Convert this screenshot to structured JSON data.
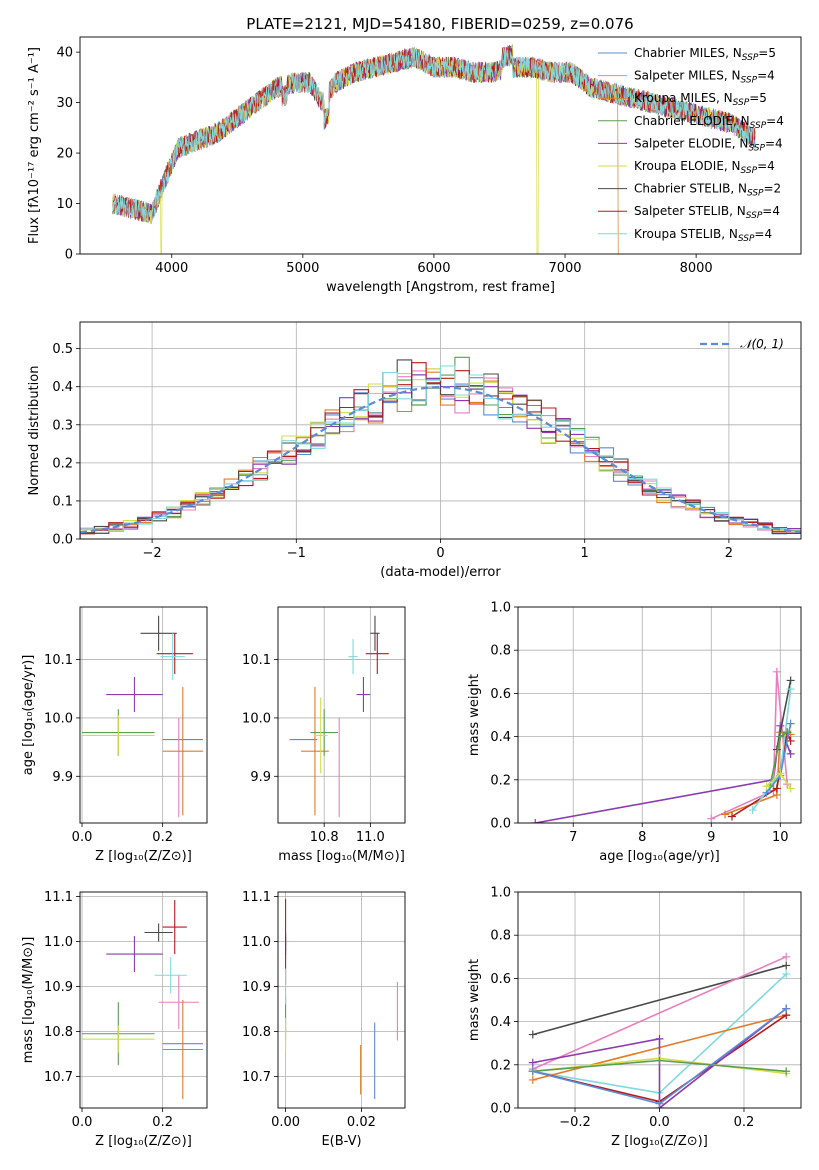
{
  "title": "PLATE=2121, MJD=54180, FIBERID=0259, z=0.076",
  "legend": [
    {
      "name": "Chabrier MILES, N",
      "sub": "SSP",
      "val": "=5",
      "color": "#5b8bd6"
    },
    {
      "name": "Salpeter MILES, N",
      "sub": "SSP",
      "val": "=4",
      "color": "#e87fbf"
    },
    {
      "name": "Kroupa MILES, N",
      "sub": "SSP",
      "val": "=5",
      "color": "#e07b28"
    },
    {
      "name": "Chabrier ELODIE, N",
      "sub": "SSP",
      "val": "=4",
      "color": "#5a9e52"
    },
    {
      "name": "Salpeter ELODIE, N",
      "sub": "SSP",
      "val": "=4",
      "color": "#8e3aae"
    },
    {
      "name": "Kroupa ELODIE, N",
      "sub": "SSP",
      "val": "=4",
      "color": "#d3dd4a"
    },
    {
      "name": "Chabrier STELIB, N",
      "sub": "SSP",
      "val": "=2",
      "color": "#4a4a4a"
    },
    {
      "name": "Salpeter STELIB, N",
      "sub": "SSP",
      "val": "=4",
      "color": "#b51b1b"
    },
    {
      "name": "Kroupa STELIB, N",
      "sub": "SSP",
      "val": "=4",
      "color": "#7fd9dd"
    }
  ],
  "chart_data": [
    {
      "type": "line",
      "id": "spectrum",
      "xlabel": "wavelength [Angstrom, rest frame]",
      "ylabel": "Flux [fλ10⁻¹⁷ erg cm⁻² s⁻¹ A⁻¹]",
      "xlim": [
        3300,
        8800
      ],
      "ylim": [
        0,
        43
      ],
      "xticks": [
        "4000",
        "5000",
        "6000",
        "7000",
        "8000"
      ],
      "yticks": [
        "0",
        "10",
        "20",
        "30",
        "40"
      ],
      "grid": false,
      "x": [
        3550,
        3700,
        3850,
        3950,
        4050,
        4150,
        4250,
        4350,
        4500,
        4650,
        4800,
        4950,
        5050,
        5150,
        5250,
        5400,
        5550,
        5700,
        5850,
        6000,
        6150,
        6300,
        6450,
        6600,
        6750,
        6900,
        7050,
        7200,
        7350,
        7500,
        7650,
        7800,
        7950,
        8100,
        8250,
        8450
      ],
      "y": [
        10,
        9,
        8,
        15,
        21,
        22,
        23,
        24,
        27,
        30,
        33,
        34,
        34,
        30,
        34,
        36,
        37,
        38,
        39,
        37,
        37,
        36,
        36,
        37,
        37,
        36,
        36,
        33,
        32,
        31,
        30,
        29,
        28,
        27,
        26,
        23
      ],
      "dropouts": [
        {
          "series": "Kroupa ELODIE",
          "x": 3920
        },
        {
          "series": "Kroupa ELODIE",
          "x": 6790
        },
        {
          "series": "Kroupa MILES",
          "x": 7410
        }
      ]
    },
    {
      "type": "histogram",
      "id": "residuals",
      "xlabel": "(data-model)/error",
      "ylabel": "Normed distribution",
      "xlim": [
        -2.5,
        2.5
      ],
      "ylim": [
        0,
        0.57
      ],
      "xticks": [
        "−2",
        "−1",
        "0",
        "1",
        "2"
      ],
      "yticks": [
        "0.0",
        "0.1",
        "0.2",
        "0.3",
        "0.4",
        "0.5"
      ],
      "grid": true,
      "legend": "N(0,1)",
      "legend_loc": "top-right",
      "bin_width": 0.1
    },
    {
      "type": "scatter",
      "id": "age-vs-Z",
      "xlabel": "Z [log₁₀(Z/Z⊙)]",
      "ylabel": "age  [log₁₀(age/yr)]",
      "xlim": [
        -0.005,
        0.31
      ],
      "ylim": [
        9.82,
        10.19
      ],
      "xticks": [
        "0.0",
        "0.2"
      ],
      "yticks": [
        "9.9",
        "10.0",
        "10.1"
      ],
      "points": [
        {
          "s": 0,
          "x": 0.25,
          "y": 9.963,
          "ex": 0.05,
          "ey": 0.0
        },
        {
          "s": 1,
          "x": 0.24,
          "y": 9.915,
          "ex": 0.0,
          "ey": 0.085
        },
        {
          "s": 2,
          "x": 0.25,
          "y": 9.943,
          "ex": 0.05,
          "ey": 0.11
        },
        {
          "s": 3,
          "x": 0.09,
          "y": 9.975,
          "ex": 0.09,
          "ey": 0.04
        },
        {
          "s": 4,
          "x": 0.13,
          "y": 10.04,
          "ex": 0.07,
          "ey": 0.03
        },
        {
          "s": 5,
          "x": 0.09,
          "y": 9.97,
          "ex": 0.09,
          "ey": 0.035
        },
        {
          "s": 6,
          "x": 0.19,
          "y": 10.145,
          "ex": 0.045,
          "ey": 0.03
        },
        {
          "s": 7,
          "x": 0.23,
          "y": 10.11,
          "ex": 0.045,
          "ey": 0.035
        },
        {
          "s": 8,
          "x": 0.225,
          "y": 10.105,
          "ex": 0.03,
          "ey": 0.04
        }
      ]
    },
    {
      "type": "scatter",
      "id": "age-vs-mass",
      "xlabel": "mass [log₁₀(M/M⊙)]",
      "ylabel": "",
      "xlim": [
        10.6,
        11.15
      ],
      "ylim": [
        9.82,
        10.19
      ],
      "xticks": [
        "10.8",
        "11.0"
      ],
      "yticks": [
        "9.9",
        "10.0",
        "10.1"
      ],
      "points": [
        {
          "s": 0,
          "x": 10.71,
          "y": 9.963,
          "ex": 0.06,
          "ey": 0.0
        },
        {
          "s": 1,
          "x": 10.865,
          "y": 9.915,
          "ex": 0.0,
          "ey": 0.085
        },
        {
          "s": 2,
          "x": 10.76,
          "y": 9.943,
          "ex": 0.06,
          "ey": 0.11
        },
        {
          "s": 3,
          "x": 10.8,
          "y": 9.975,
          "ex": 0.06,
          "ey": 0.04
        },
        {
          "s": 4,
          "x": 10.97,
          "y": 10.04,
          "ex": 0.03,
          "ey": 0.03
        },
        {
          "s": 5,
          "x": 10.785,
          "y": 9.97,
          "ex": 0.03,
          "ey": 0.065
        },
        {
          "s": 6,
          "x": 11.02,
          "y": 10.145,
          "ex": 0.02,
          "ey": 0.03
        },
        {
          "s": 7,
          "x": 11.03,
          "y": 10.11,
          "ex": 0.05,
          "ey": 0.035
        },
        {
          "s": 8,
          "x": 10.925,
          "y": 10.105,
          "ex": 0.02,
          "ey": 0.03
        }
      ]
    },
    {
      "type": "line",
      "id": "weight-vs-age",
      "xlabel": "age  [log₁₀(age/yr)]",
      "ylabel": "mass weight",
      "xlim": [
        6.2,
        10.3
      ],
      "ylim": [
        0,
        1
      ],
      "xticks": [
        "7",
        "8",
        "9",
        "10"
      ],
      "yticks": [
        "0.0",
        "0.2",
        "0.4",
        "0.6",
        "0.8",
        "1.0"
      ],
      "series": [
        {
          "s": 4,
          "x": [
            6.45,
            9.9,
            10.0,
            10.15
          ],
          "y": [
            0.0,
            0.2,
            0.45,
            0.32
          ]
        },
        {
          "s": 1,
          "x": [
            9.0,
            9.9,
            9.95,
            10.1
          ],
          "y": [
            0.02,
            0.15,
            0.7,
            0.18
          ]
        },
        {
          "s": 2,
          "x": [
            9.2,
            9.95,
            10.0,
            10.15
          ],
          "y": [
            0.04,
            0.13,
            0.42,
            0.41
          ]
        },
        {
          "s": 6,
          "x": [
            9.95,
            10.15
          ],
          "y": [
            0.34,
            0.66
          ]
        },
        {
          "s": 7,
          "x": [
            9.3,
            9.95,
            10.1,
            10.15
          ],
          "y": [
            0.03,
            0.16,
            0.42,
            0.38
          ]
        },
        {
          "s": 8,
          "x": [
            9.6,
            10.0,
            10.15
          ],
          "y": [
            0.06,
            0.23,
            0.62
          ]
        },
        {
          "s": 0,
          "x": [
            9.8,
            10.0,
            10.15
          ],
          "y": [
            0.14,
            0.22,
            0.46
          ]
        },
        {
          "s": 3,
          "x": [
            9.85,
            10.0,
            10.1
          ],
          "y": [
            0.17,
            0.4,
            0.42
          ]
        },
        {
          "s": 5,
          "x": [
            9.8,
            10.0,
            10.15
          ],
          "y": [
            0.17,
            0.23,
            0.16
          ]
        }
      ]
    },
    {
      "type": "scatter",
      "id": "mass-vs-Z",
      "xlabel": "Z [log₁₀(Z/Z⊙)]",
      "ylabel": "mass [log₁₀(M/M⊙)]",
      "xlim": [
        -0.005,
        0.31
      ],
      "ylim": [
        10.63,
        11.11
      ],
      "xticks": [
        "0.0",
        "0.2"
      ],
      "yticks": [
        "10.7",
        "10.8",
        "10.9",
        "11.0",
        "11.1"
      ],
      "points": [
        {
          "s": 0,
          "x": 0.25,
          "y": 10.773,
          "ex": 0.05,
          "ey": 0.0
        },
        {
          "s": 1,
          "x": 0.24,
          "y": 10.865,
          "ex": 0.05,
          "ey": 0.06
        },
        {
          "s": 2,
          "x": 0.25,
          "y": 10.76,
          "ex": 0.05,
          "ey": 0.11
        },
        {
          "s": 3,
          "x": 0.09,
          "y": 10.795,
          "ex": 0.09,
          "ey": 0.07
        },
        {
          "s": 4,
          "x": 0.13,
          "y": 10.972,
          "ex": 0.07,
          "ey": 0.04
        },
        {
          "s": 5,
          "x": 0.09,
          "y": 10.783,
          "ex": 0.09,
          "ey": 0.03
        },
        {
          "s": 6,
          "x": 0.19,
          "y": 11.02,
          "ex": 0.035,
          "ey": 0.02
        },
        {
          "s": 7,
          "x": 0.23,
          "y": 11.032,
          "ex": 0.03,
          "ey": 0.06
        },
        {
          "s": 8,
          "x": 0.22,
          "y": 10.925,
          "ex": 0.04,
          "ey": 0.04
        }
      ]
    },
    {
      "type": "scatter",
      "id": "mass-vs-ebv",
      "xlabel": "E(B-V)",
      "ylabel": "",
      "xlim": [
        -0.002,
        0.0315
      ],
      "ylim": [
        10.63,
        11.11
      ],
      "xticks": [
        "0.00",
        "0.02"
      ],
      "yticks": [
        "10.7",
        "10.8",
        "10.9",
        "11.0",
        "11.1"
      ],
      "points": [
        {
          "s": 0,
          "x": 0.0235,
          "y": 10.735,
          "ex": 0.0,
          "ey": 0.085
        },
        {
          "s": 1,
          "x": 0.0295,
          "y": 10.845,
          "ex": 0.0,
          "ey": 0.065
        },
        {
          "s": 2,
          "x": 0.0198,
          "y": 10.715,
          "ex": 0.0,
          "ey": 0.055
        },
        {
          "s": 3,
          "x": 0.0,
          "y": 10.83,
          "ex": 0.0,
          "ey": 0.05
        },
        {
          "s": 4,
          "x": 0.0,
          "y": 10.99,
          "ex": 0.0,
          "ey": 0.02
        },
        {
          "s": 5,
          "x": 0.0,
          "y": 10.79,
          "ex": 0.0,
          "ey": 0.04
        },
        {
          "s": 6,
          "x": 0.0,
          "y": 11.0,
          "ex": 0.0,
          "ey": 0.02
        },
        {
          "s": 7,
          "x": 0.0,
          "y": 11.0,
          "ex": 0.0,
          "ey": 0.095
        },
        {
          "s": 8,
          "x": 0.0,
          "y": 10.9,
          "ex": 0.0,
          "ey": 0.04
        }
      ]
    },
    {
      "type": "line",
      "id": "weight-vs-Z",
      "xlabel": "Z [log₁₀(Z/Z⊙)]",
      "ylabel": "mass weight",
      "xlim": [
        -0.335,
        0.335
      ],
      "ylim": [
        0,
        1
      ],
      "xticks": [
        "−0.2",
        "0.0",
        "0.2"
      ],
      "yticks": [
        "0.0",
        "0.2",
        "0.4",
        "0.6",
        "0.8",
        "1.0"
      ],
      "series": [
        {
          "s": 6,
          "x": [
            -0.3,
            0.3
          ],
          "y": [
            0.34,
            0.66
          ]
        },
        {
          "s": 1,
          "x": [
            -0.3,
            0.3
          ],
          "y": [
            0.18,
            0.7
          ]
        },
        {
          "s": 8,
          "x": [
            -0.3,
            0.0,
            0.3
          ],
          "y": [
            0.17,
            0.07,
            0.62
          ]
        },
        {
          "s": 2,
          "x": [
            -0.3,
            0.3
          ],
          "y": [
            0.13,
            0.43
          ]
        },
        {
          "s": 7,
          "x": [
            -0.3,
            0.0,
            0.3
          ],
          "y": [
            0.17,
            0.03,
            0.43
          ]
        },
        {
          "s": 4,
          "x": [
            -0.3,
            0.0,
            0.0,
            0.3
          ],
          "y": [
            0.21,
            0.32,
            0.0,
            0.46
          ]
        },
        {
          "s": 5,
          "x": [
            -0.3,
            0.0,
            0.3
          ],
          "y": [
            0.17,
            0.23,
            0.16
          ]
        },
        {
          "s": 3,
          "x": [
            -0.3,
            0.0,
            0.3
          ],
          "y": [
            0.17,
            0.22,
            0.17
          ]
        },
        {
          "s": 0,
          "x": [
            -0.3,
            0.0,
            0.3
          ],
          "y": [
            0.17,
            0.02,
            0.46
          ]
        }
      ]
    }
  ]
}
